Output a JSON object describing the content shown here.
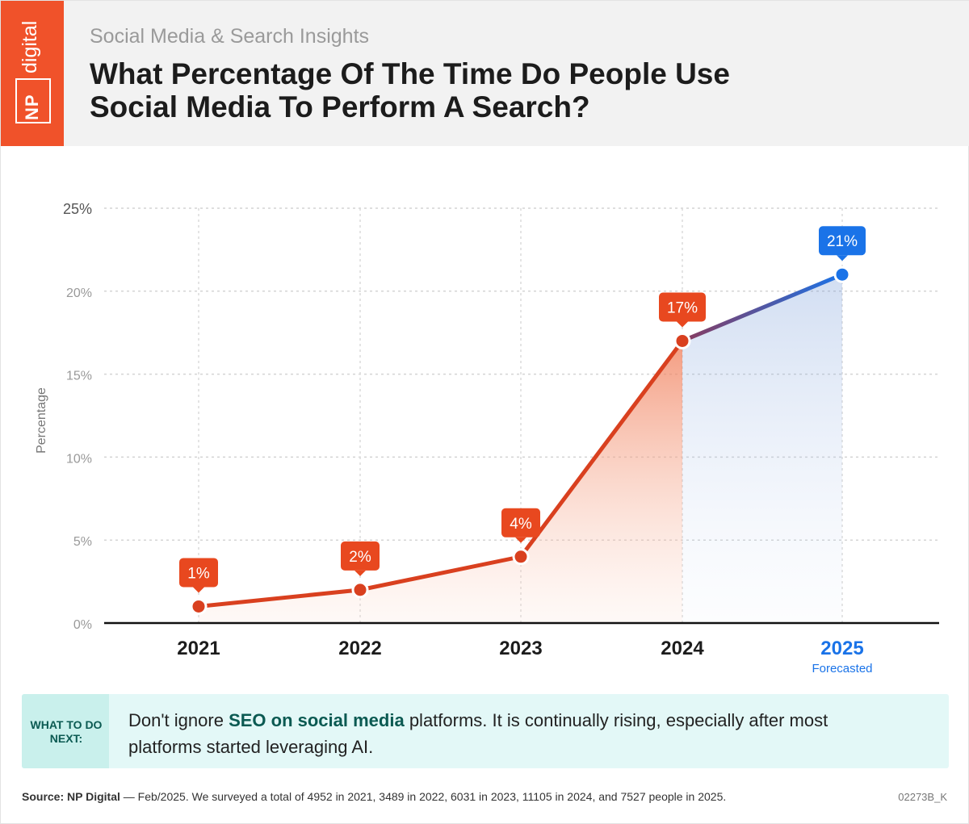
{
  "brand": {
    "logo_primary": "NP",
    "logo_secondary": "digital",
    "color": "#f0522a"
  },
  "header": {
    "subtitle": "Social Media & Search Insights",
    "title": "What Percentage Of The Time Do People Use Social Media To Perform A Search?"
  },
  "chart_data": {
    "type": "line",
    "categories": [
      "2021",
      "2022",
      "2023",
      "2024",
      "2025"
    ],
    "values": [
      1,
      2,
      4,
      17,
      21
    ],
    "data_labels": [
      "1%",
      "2%",
      "4%",
      "17%",
      "21%"
    ],
    "forecast_note": "Forecasted",
    "forecast_category": "2025",
    "ylabel": "Percentage",
    "xlabel": "",
    "yticks": [
      "0%",
      "5%",
      "10%",
      "15%",
      "20%",
      "25%"
    ],
    "ylim": [
      0,
      25
    ],
    "grid": true,
    "colors": {
      "actual": "#d9401f",
      "forecast": "#1a73e8",
      "label_bg": "#e8481f"
    }
  },
  "tip": {
    "label": "WHAT TO DO NEXT:",
    "text_before": "Don't ignore ",
    "text_bold": "SEO on social media",
    "text_after": " platforms. It is continually rising, especially after most platforms started leveraging AI."
  },
  "footer": {
    "source_label": "Source: NP Digital",
    "source_text": " — Feb/2025. We surveyed a total of 4952 in 2021, 3489 in 2022, 6031 in 2023, 11105 in 2024, and 7527 people in 2025.",
    "code": "02273B_K"
  }
}
